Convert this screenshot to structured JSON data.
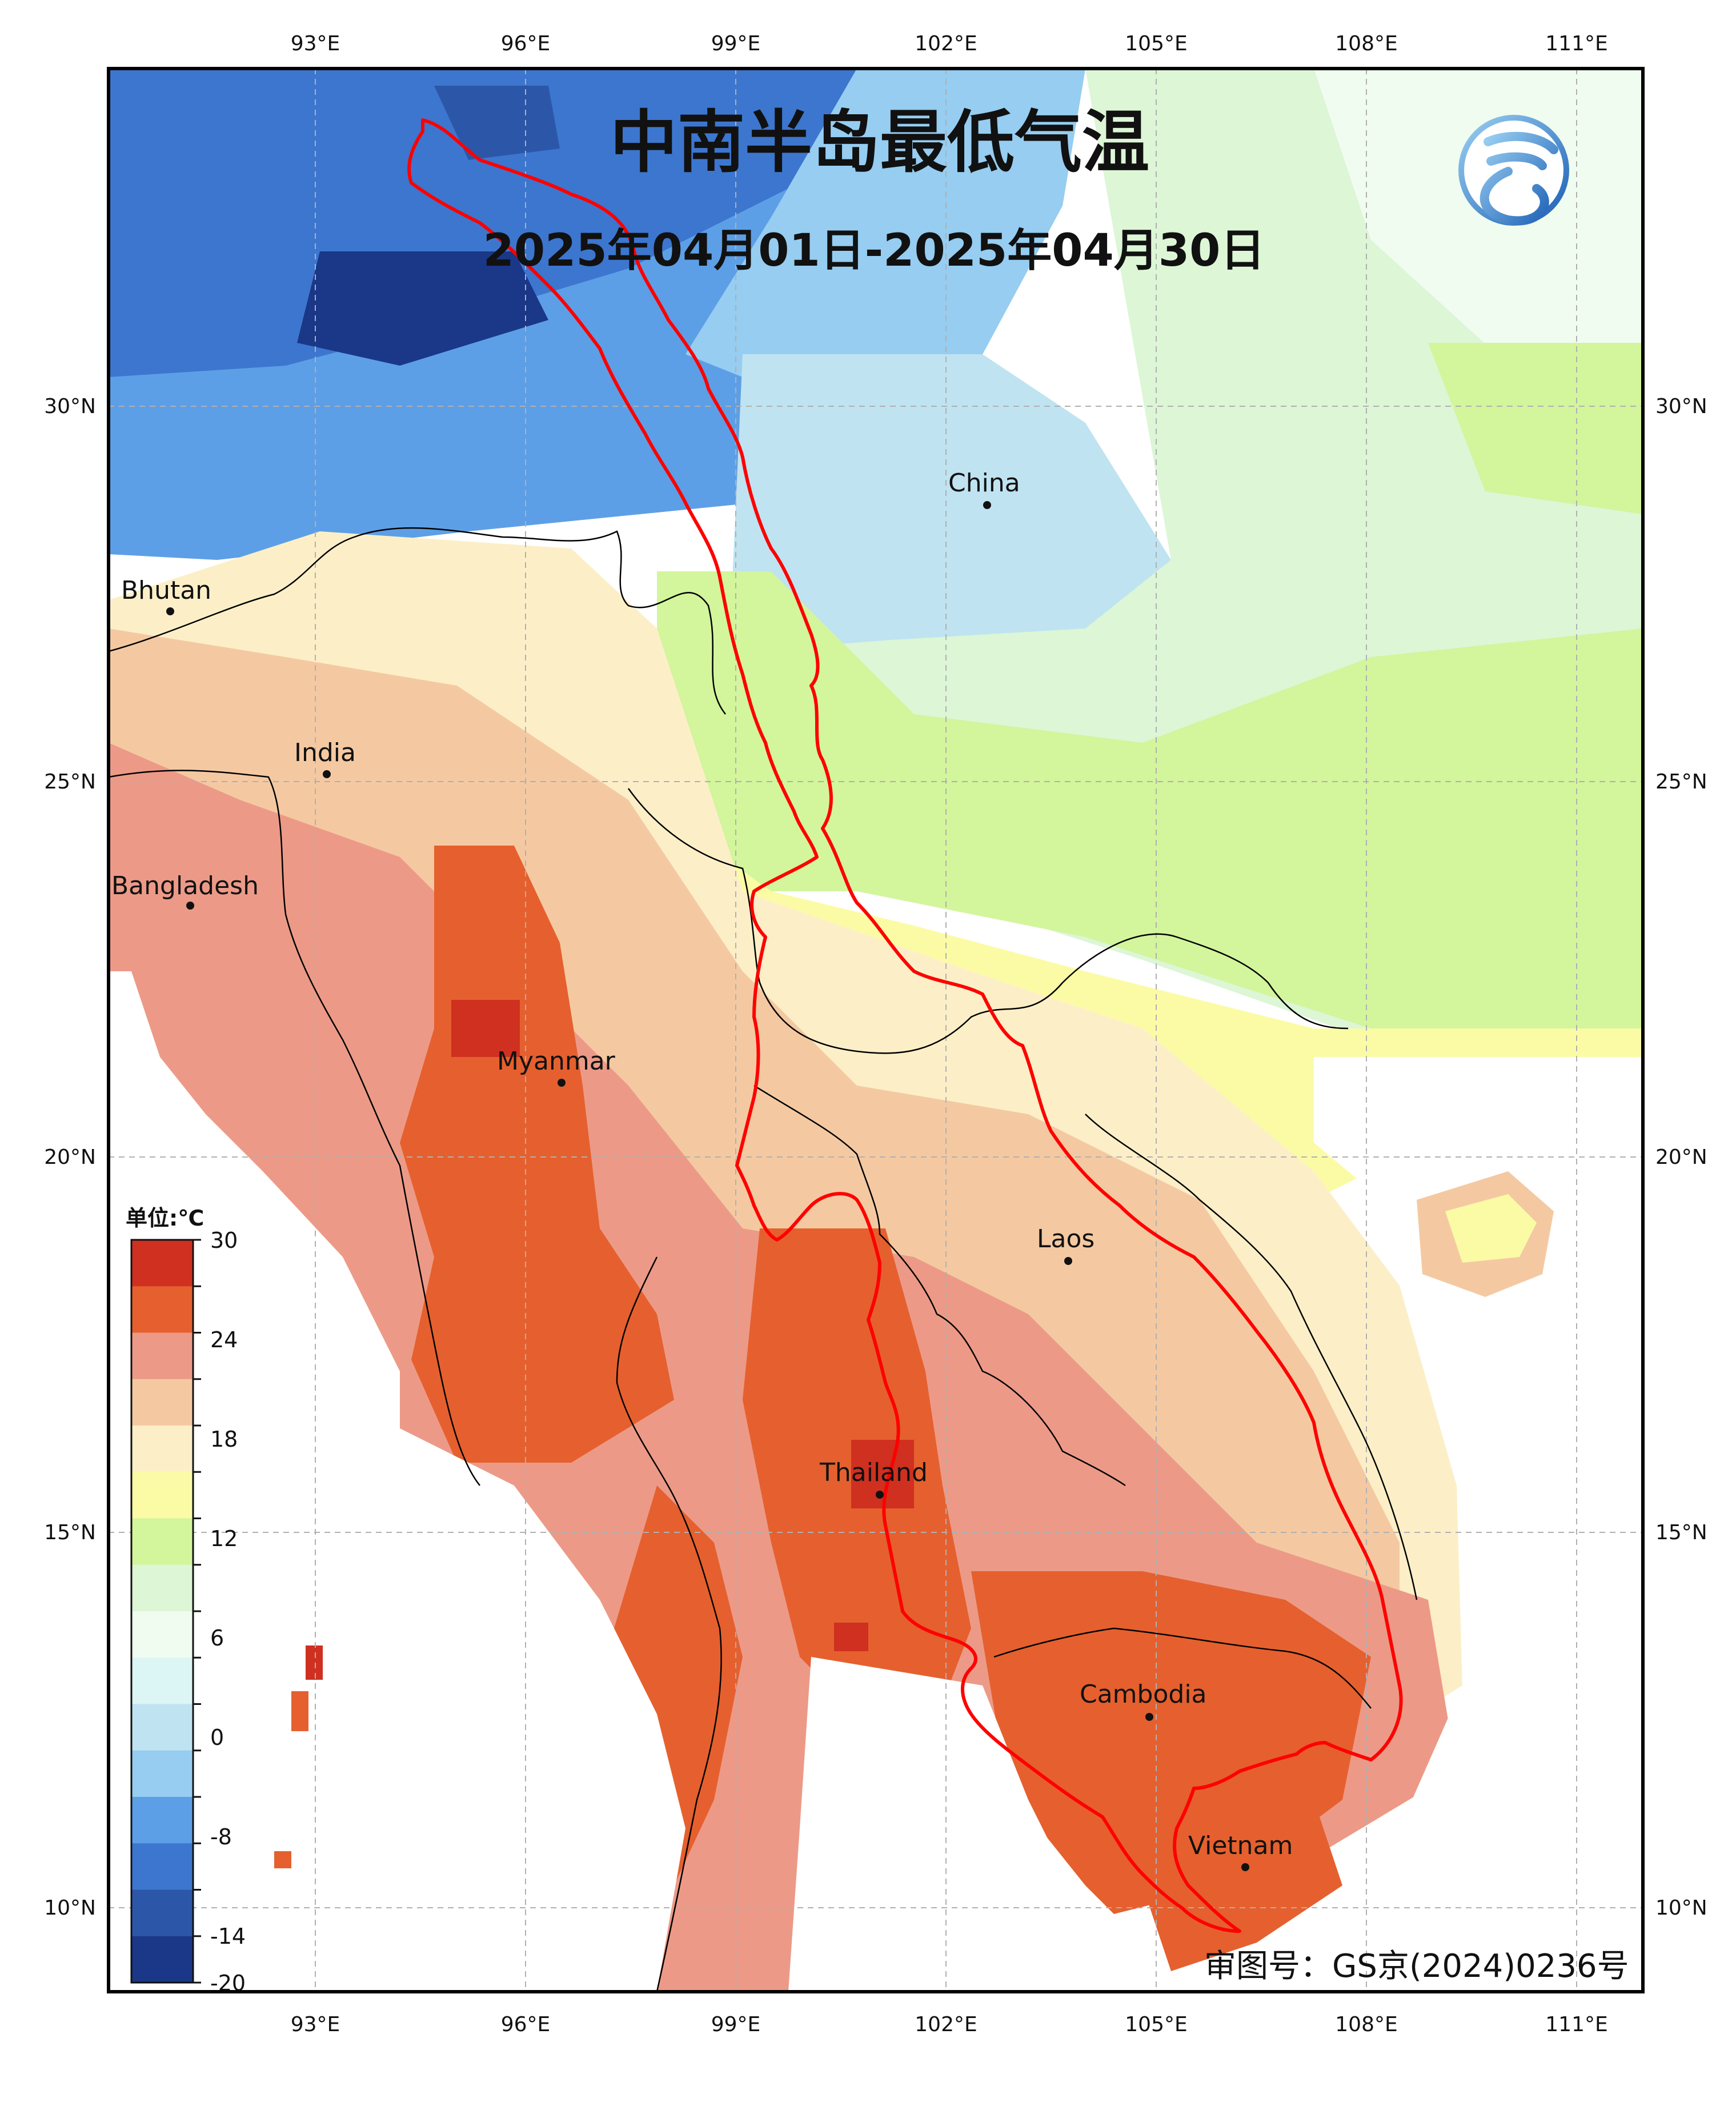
{
  "title": "中南半岛最低气温",
  "subtitle": "2025年04月01日-2025年04月30日",
  "approval_number": "审图号：GS京(2024)0236号",
  "colorbar": {
    "unit_label": "单位:℃",
    "tick_labels": [
      "30",
      "24",
      "18",
      "12",
      "6",
      "0",
      "-8",
      "-14",
      "-20"
    ],
    "colors_top_to_bottom": [
      "#cf3020",
      "#e5602e",
      "#ec9a87",
      "#f4c9a2",
      "#fcefc8",
      "#fbfba6",
      "#d3f59c",
      "#dcf6d6",
      "#effcef",
      "#dcf5f5",
      "#bfe3f1",
      "#96cdf1",
      "#5d9fe6",
      "#3c76cf",
      "#2c57a8",
      "#1a3788"
    ]
  },
  "axes": {
    "lon_labels": [
      "93°E",
      "96°E",
      "99°E",
      "102°E",
      "105°E",
      "108°E",
      "111°E"
    ],
    "lat_labels": [
      "30°N",
      "25°N",
      "20°N",
      "15°N",
      "10°N"
    ]
  },
  "places": [
    {
      "name": "Bhutan"
    },
    {
      "name": "India"
    },
    {
      "name": "Bangladesh"
    },
    {
      "name": "Myanmar"
    },
    {
      "name": "China"
    },
    {
      "name": "Laos"
    },
    {
      "name": "Thailand"
    },
    {
      "name": "Cambodia"
    },
    {
      "name": "Vietnam"
    }
  ],
  "colors": {
    "basin_boundary": "#ff0000",
    "country_border": "#000000",
    "gridline": "#b0b0b0"
  }
}
